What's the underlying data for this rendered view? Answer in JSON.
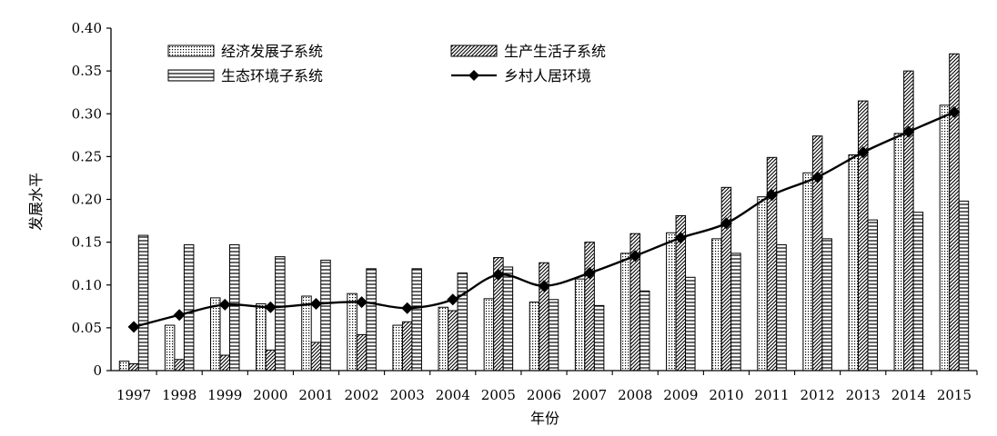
{
  "chart_data": {
    "type": "bar",
    "title": "",
    "xlabel": "年份",
    "ylabel": "发展水平",
    "ylim": [
      0,
      0.4
    ],
    "yticks": [
      "0",
      "0.05",
      "0.10",
      "0.15",
      "0.20",
      "0.25",
      "0.30",
      "0.35",
      "0.40"
    ],
    "ytick_values": [
      0,
      0.05,
      0.1,
      0.15,
      0.2,
      0.25,
      0.3,
      0.35,
      0.4
    ],
    "categories": [
      "1997",
      "1998",
      "1999",
      "2000",
      "2001",
      "2002",
      "2003",
      "2004",
      "2005",
      "2006",
      "2007",
      "2008",
      "2009",
      "2010",
      "2011",
      "2012",
      "2013",
      "2014",
      "2015"
    ],
    "legend_position": "top-left",
    "grid": false,
    "series": [
      {
        "name": "经济发展子系统",
        "kind": "bar",
        "pattern": "dots",
        "values": [
          0.011,
          0.053,
          0.085,
          0.078,
          0.087,
          0.09,
          0.053,
          0.074,
          0.084,
          0.08,
          0.107,
          0.137,
          0.161,
          0.154,
          0.203,
          0.231,
          0.252,
          0.277,
          0.31
        ]
      },
      {
        "name": "生产生活子系统",
        "kind": "bar",
        "pattern": "diagonal",
        "values": [
          0.008,
          0.013,
          0.018,
          0.024,
          0.033,
          0.042,
          0.057,
          0.07,
          0.132,
          0.126,
          0.15,
          0.16,
          0.181,
          0.214,
          0.249,
          0.274,
          0.315,
          0.35,
          0.37
        ]
      },
      {
        "name": "生态环境子系统",
        "kind": "bar",
        "pattern": "horizontal",
        "values": [
          0.158,
          0.147,
          0.147,
          0.133,
          0.129,
          0.119,
          0.119,
          0.114,
          0.121,
          0.083,
          0.076,
          0.093,
          0.109,
          0.137,
          0.147,
          0.154,
          0.176,
          0.185,
          0.198
        ]
      },
      {
        "name": "乡村人居环境",
        "kind": "line",
        "marker": "diamond",
        "color": "#000000",
        "values": [
          0.051,
          0.065,
          0.077,
          0.074,
          0.078,
          0.08,
          0.073,
          0.083,
          0.112,
          0.099,
          0.114,
          0.134,
          0.155,
          0.172,
          0.205,
          0.226,
          0.255,
          0.279,
          0.302
        ]
      }
    ]
  }
}
